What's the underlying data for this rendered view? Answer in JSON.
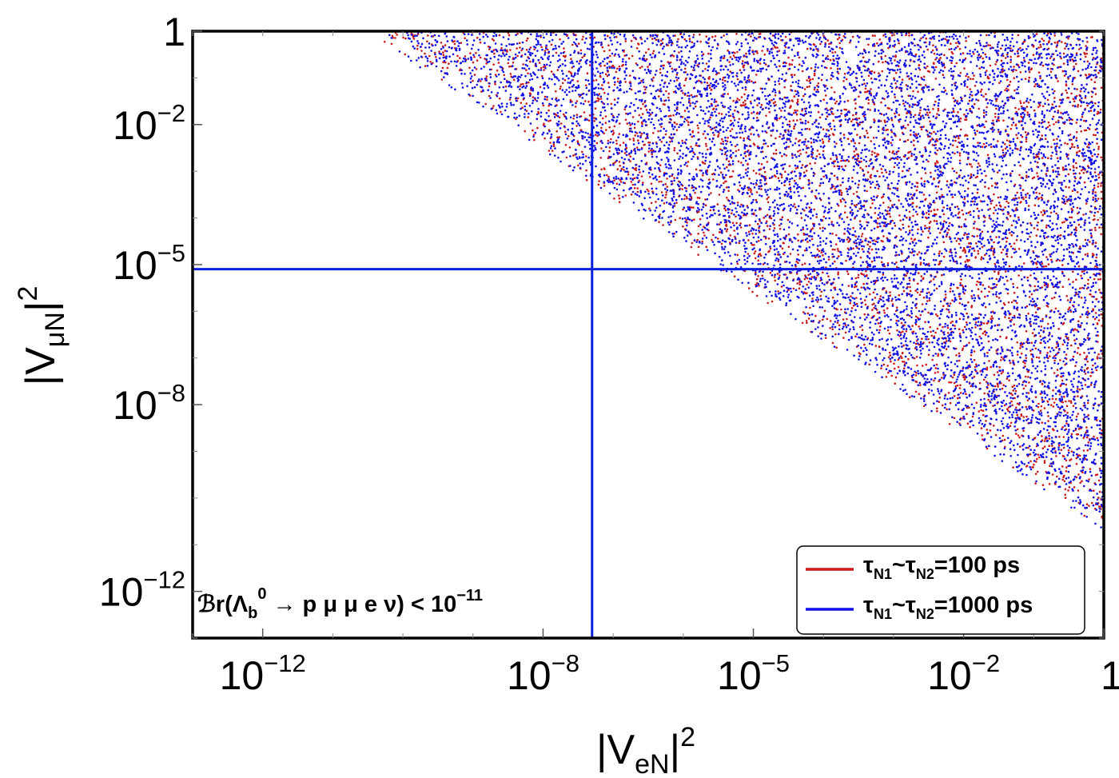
{
  "chart_data": {
    "type": "scatter",
    "x_scale": "log",
    "y_scale": "log",
    "xlim": [
      1e-13,
      1
    ],
    "ylim": [
      1e-13,
      1
    ],
    "xlabel": {
      "prefix": "|V",
      "sub": "eN",
      "suffix": "|",
      "sup": "2"
    },
    "ylabel": {
      "prefix": "|V",
      "sub": "μN",
      "suffix": "|",
      "sup": "2"
    },
    "x_ticks": [
      {
        "value": 1e-12,
        "base": "10",
        "exp": "−12"
      },
      {
        "value": 1e-08,
        "base": "10",
        "exp": "−8"
      },
      {
        "value": 1e-05,
        "base": "10",
        "exp": "−5"
      },
      {
        "value": 0.01,
        "base": "10",
        "exp": "−2"
      },
      {
        "value": 1,
        "base": "1",
        "exp": ""
      }
    ],
    "y_ticks": [
      {
        "value": 1e-12,
        "base": "10",
        "exp": "−12"
      },
      {
        "value": 1e-08,
        "base": "10",
        "exp": "−8"
      },
      {
        "value": 1e-05,
        "base": "10",
        "exp": "−5"
      },
      {
        "value": 0.01,
        "base": "10",
        "exp": "−2"
      },
      {
        "value": 1,
        "base": "1",
        "exp": ""
      }
    ],
    "region": {
      "description": "allowed points satisfy log10(|VeN|^2) + log10(|VμN|^2) above a boundary line",
      "boundary": [
        {
          "x": 3e-11,
          "y": 1
        },
        {
          "x": 1,
          "y": 2e-11
        }
      ],
      "log_x_min": -10.5
    },
    "series": [
      {
        "name": "tau_100ps",
        "label_pre": "τ",
        "label_sub": "N1",
        "label_mid": "~τ",
        "label_sub2": "N2",
        "label_post": "=100 ps",
        "color": "#cc1a1a",
        "point_count": 3800
      },
      {
        "name": "tau_1000ps",
        "label_pre": "τ",
        "label_sub": "N1",
        "label_mid": "~τ",
        "label_sub2": "N2",
        "label_post": "=1000 ps",
        "color": "#1010e6",
        "point_count": 7200
      }
    ],
    "reference_lines": [
      {
        "orientation": "vertical",
        "value": 5e-08,
        "color": "#0a1ee0"
      },
      {
        "orientation": "horizontal",
        "value": 8e-06,
        "color": "#0a1ee0"
      }
    ],
    "annotation": {
      "br": "ℬr(Λ",
      "br_sub": "b",
      "br_sup": "0",
      "process": " → p μ μ e ν) < 10",
      "limit_exp": "−11"
    },
    "legend_position": "bottom-right",
    "grid": false
  }
}
